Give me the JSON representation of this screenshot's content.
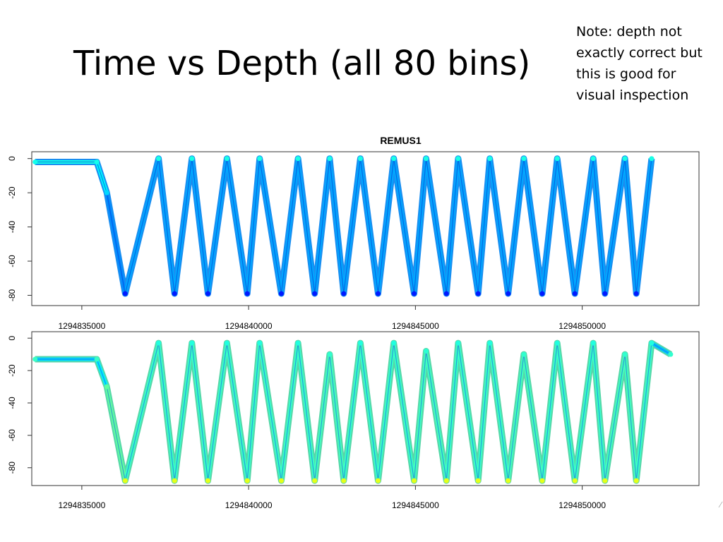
{
  "slide": {
    "title": "Time vs Depth (all 80 bins)",
    "note": "Note: depth not exactly correct but this is good for visual inspection"
  },
  "chart_data": [
    {
      "type": "scatter",
      "title": "REMUS1",
      "xlabel": "",
      "ylabel": "",
      "xlim": [
        1294833500,
        1294853500
      ],
      "ylim": [
        -86,
        4
      ],
      "x_ticks": [
        1294835000,
        1294840000,
        1294845000,
        1294850000
      ],
      "y_ticks": [
        0,
        -20,
        -40,
        -60,
        -80
      ],
      "grid": false,
      "legend": "none",
      "color_scale": "jet",
      "surface_depth": -1,
      "series": [
        {
          "x": [
            1294833600,
            1294835450,
            1294835750,
            1294836300,
            1294837300,
            1294837780,
            1294838300,
            1294838780,
            1294839350,
            1294839960,
            1294840330,
            1294840980,
            1294841480,
            1294841980,
            1294842430,
            1294842850,
            1294843350,
            1294843880,
            1294844350,
            1294844960,
            1294845320,
            1294845930,
            1294846280,
            1294846880,
            1294847230,
            1294847780,
            1294848250,
            1294848800,
            1294849250,
            1294849780,
            1294850330,
            1294850680,
            1294851280,
            1294851620,
            1294852080
          ],
          "y": [
            -2,
            -2,
            -20,
            -79,
            0,
            -79,
            0,
            -79,
            0,
            -79,
            0,
            -79,
            0,
            -79,
            0,
            -79,
            0,
            -79,
            0,
            -79,
            0,
            -79,
            0,
            -79,
            0,
            -79,
            0,
            -79,
            0,
            -79,
            0,
            -79,
            0,
            -79,
            0
          ]
        }
      ]
    },
    {
      "type": "scatter",
      "title": "",
      "xlabel": "",
      "ylabel": "",
      "xlim": [
        1294833500,
        1294853500
      ],
      "ylim": [
        -91,
        4
      ],
      "x_ticks": [
        1294835000,
        1294840000,
        1294845000,
        1294850000
      ],
      "y_ticks": [
        0,
        -20,
        -40,
        -60,
        -80
      ],
      "grid": false,
      "legend": "none",
      "color_scale": "jet",
      "surface_depth": -8,
      "series": [
        {
          "x": [
            1294833600,
            1294835450,
            1294835750,
            1294836300,
            1294837300,
            1294837780,
            1294838300,
            1294838780,
            1294839350,
            1294839960,
            1294840330,
            1294840980,
            1294841480,
            1294841980,
            1294842430,
            1294842850,
            1294843350,
            1294843880,
            1294844350,
            1294844960,
            1294845320,
            1294845930,
            1294846280,
            1294846880,
            1294847230,
            1294847780,
            1294848250,
            1294848800,
            1294849250,
            1294849780,
            1294850330,
            1294850680,
            1294851280,
            1294851620,
            1294852080,
            1294852650
          ],
          "y": [
            -13,
            -13,
            -30,
            -88,
            -3,
            -88,
            -3,
            -88,
            -3,
            -88,
            -3,
            -88,
            -3,
            -88,
            -10,
            -88,
            -3,
            -88,
            -3,
            -88,
            -8,
            -88,
            -3,
            -88,
            -3,
            -88,
            -10,
            -88,
            -3,
            -88,
            -3,
            -88,
            -10,
            -88,
            -3,
            -10
          ]
        }
      ]
    }
  ]
}
